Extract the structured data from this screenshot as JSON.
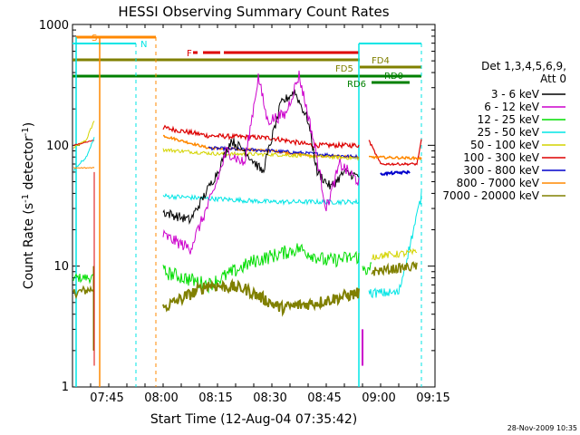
{
  "chart_data": {
    "type": "line",
    "title": "HESSI Observing Summary Count Rates",
    "xlabel": "Start Time (12-Aug-04 07:35:42)",
    "ylabel": "Count Rate (s",
    "ylabel_sup": "-1",
    "ylabel_mid": " detector",
    "ylabel_tail": ")",
    "yscale": "log",
    "ylim": [
      1,
      1000
    ],
    "xlim_minutes": [
      0,
      100
    ],
    "x_tick_labels": [
      "07:45",
      "08:00",
      "08:15",
      "08:30",
      "08:45",
      "09:00",
      "09:15"
    ],
    "y_tick_labels": [
      "1",
      "10",
      "100",
      "1000"
    ],
    "legend_header": [
      "Det 1,3,4,5,6,9,",
      "Att 0"
    ],
    "timestamp": "28-Nov-2009 10:35",
    "series": [
      {
        "name": "3 - 6 keV",
        "color": "#000000"
      },
      {
        "name": "6 - 12 keV",
        "color": "#cc00cc"
      },
      {
        "name": "12 - 25 keV",
        "color": "#00dd00"
      },
      {
        "name": "25 - 50 keV",
        "color": "#00e5e5"
      },
      {
        "name": "50 - 100 keV",
        "color": "#d4d400"
      },
      {
        "name": "100 - 300 keV",
        "color": "#dd0000"
      },
      {
        "name": "300 - 800 keV",
        "color": "#0000cc"
      },
      {
        "name": "800 - 7000 keV",
        "color": "#ff8800"
      },
      {
        "name": "7000 - 20000 keV",
        "color": "#808000"
      }
    ],
    "flag_bars": [
      {
        "label": "S",
        "color": "#ff8800"
      },
      {
        "label": "N",
        "color": "#00e5e5"
      },
      {
        "label": "F",
        "color": "#dd0000"
      },
      {
        "label": "FD4",
        "color": "#808000"
      },
      {
        "label": "FD5",
        "color": "#808000"
      },
      {
        "label": "RD0",
        "color": "#008000"
      },
      {
        "label": "RD6",
        "color": "#008000"
      }
    ]
  }
}
